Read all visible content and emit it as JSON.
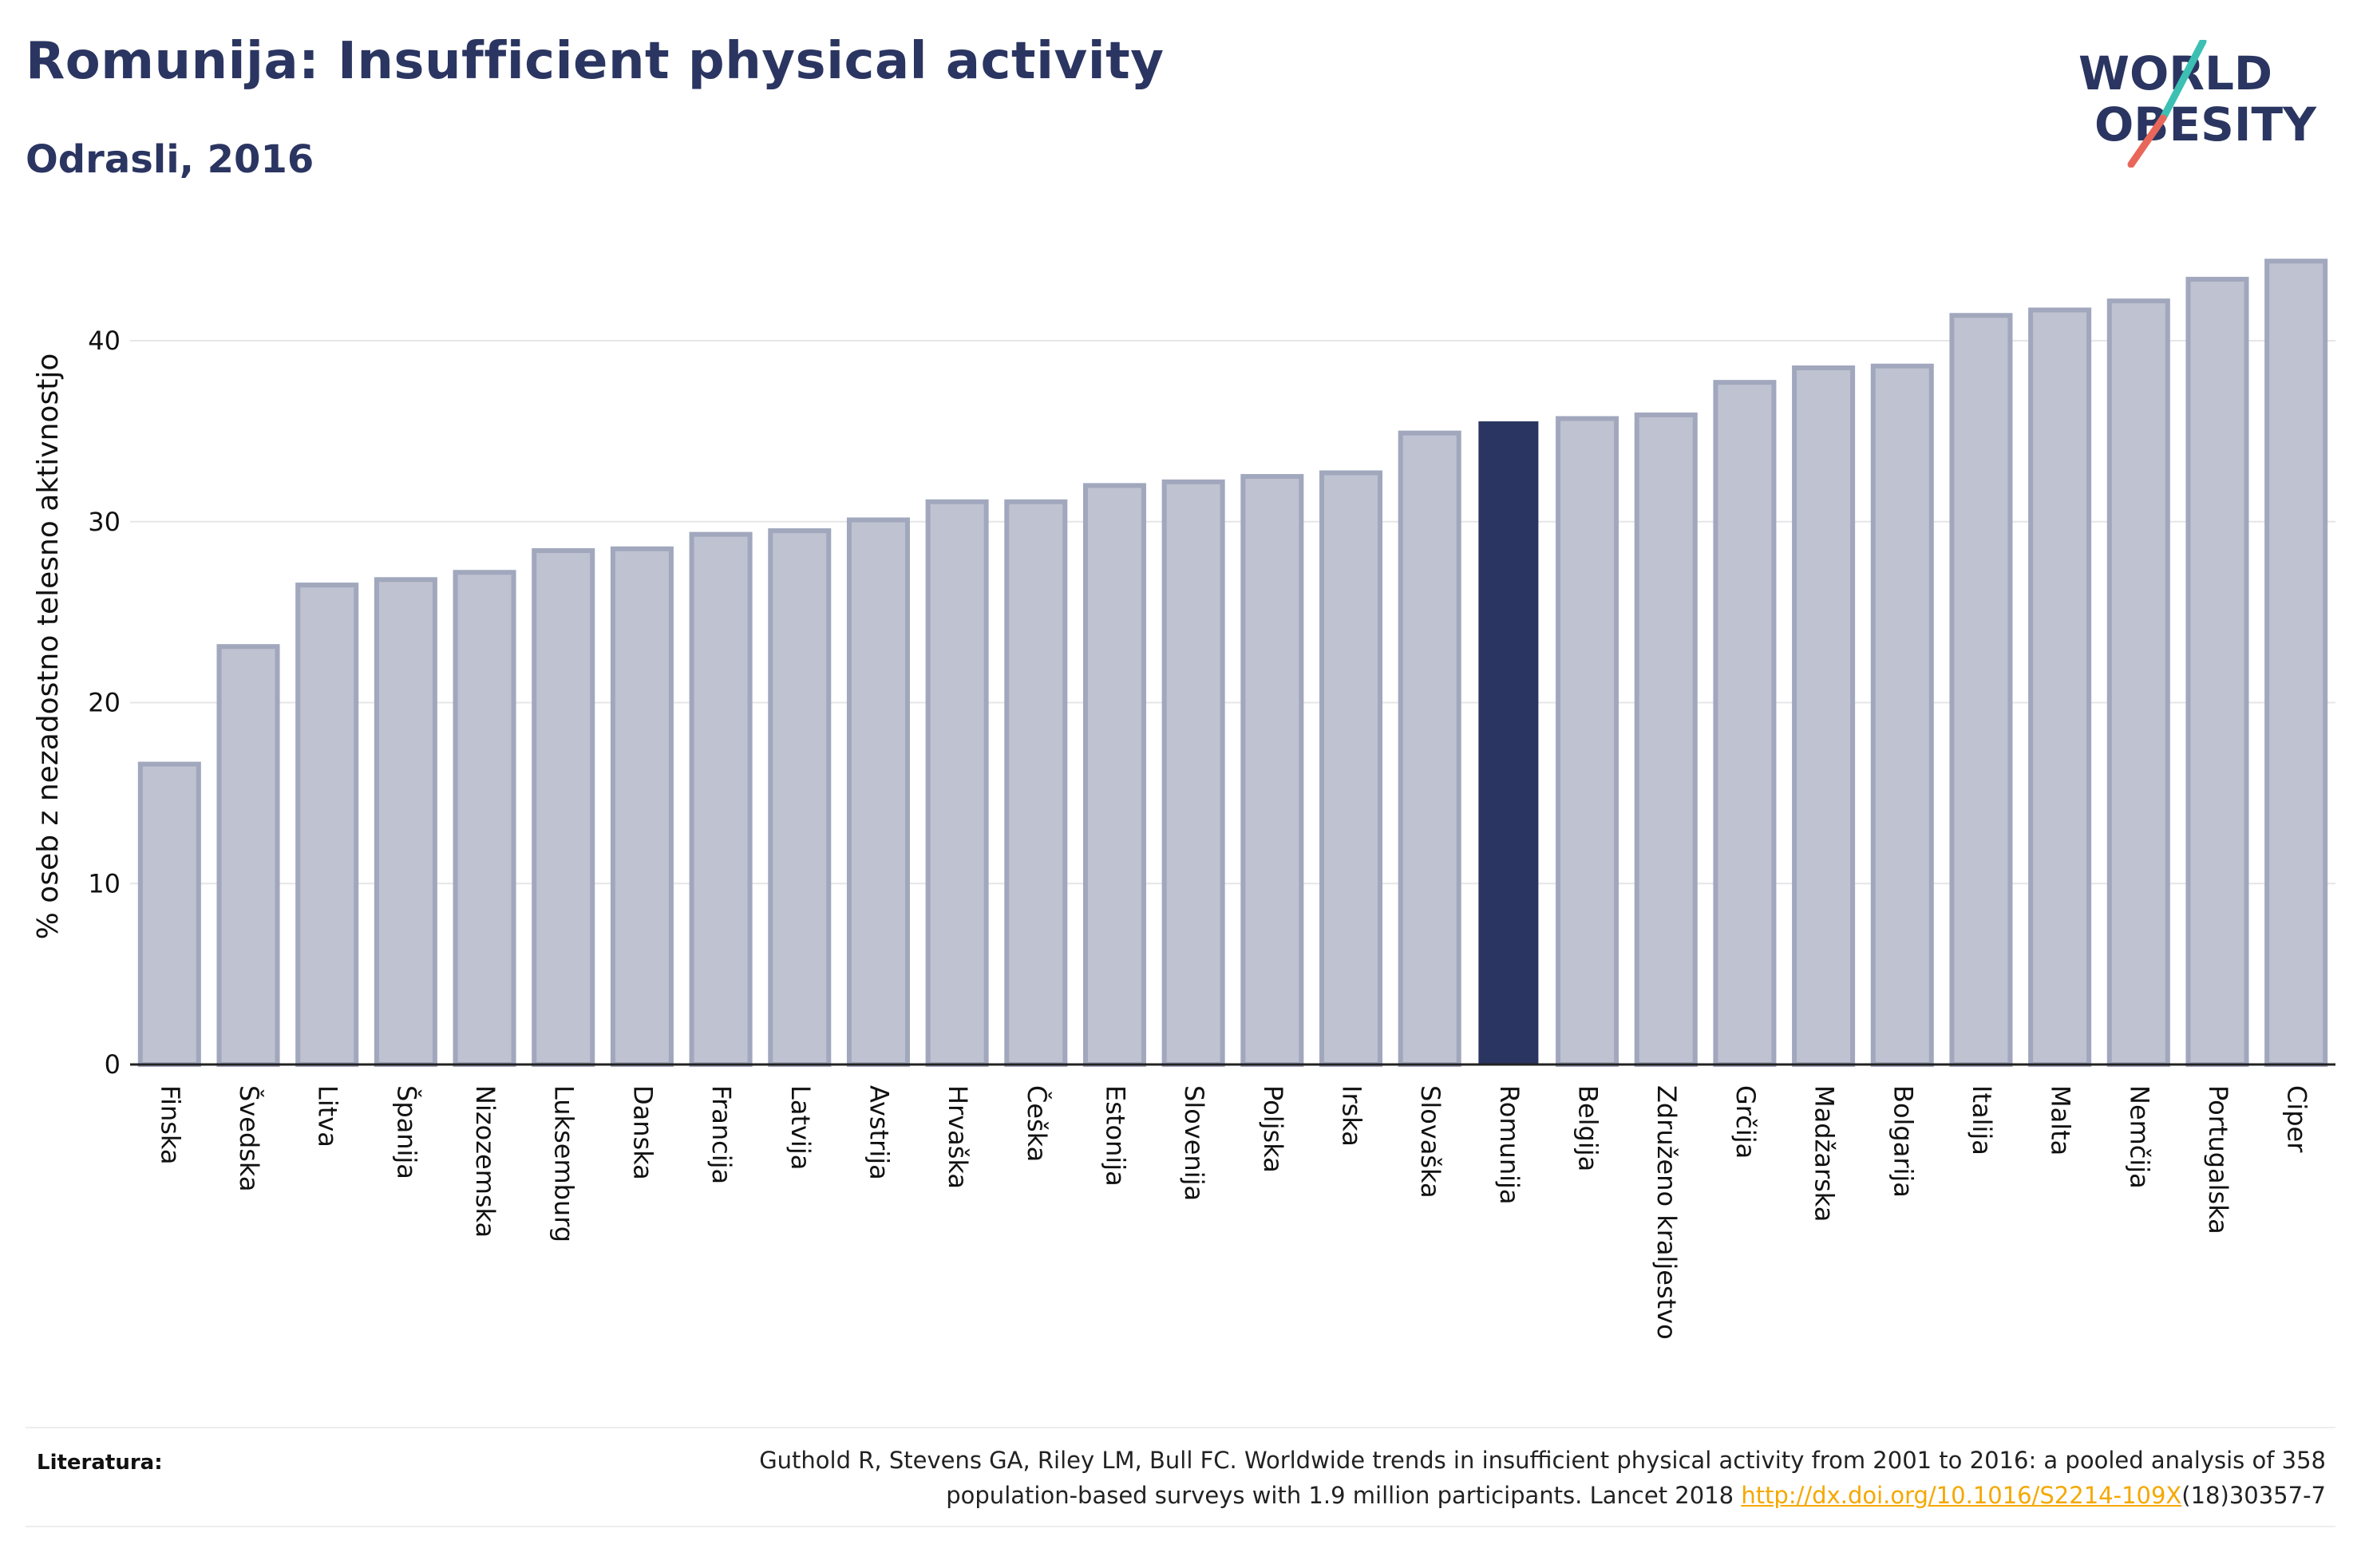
{
  "header": {
    "title": "Romunija: Insufficient physical activity",
    "subtitle": "Odrasli, 2016"
  },
  "logo": {
    "line1": "WORLD",
    "line2": "OBESITY",
    "text_color": "#2b3561",
    "slash_colors": [
      "#3cc0b4",
      "#e8675a"
    ]
  },
  "footer": {
    "literature_label": "Literatura:",
    "citation_line1": "Guthold R, Stevens GA, Riley LM, Bull FC. Worldwide trends in insufficient physical activity from 2001 to 2016: a pooled analysis of 358",
    "citation_line2_prefix": "population-based surveys with 1.9 million participants. Lancet 2018 ",
    "citation_link": "http://dx.doi.org/10.1016/S2214-109X",
    "citation_line2_suffix": "(18)30357-7"
  },
  "colors": {
    "bar_fill": "#bfc2d0",
    "bar_stroke": "#a1a7bd",
    "highlight_fill": "#2b3561",
    "grid": "#e6e6e6",
    "axis": "#222222"
  },
  "chart_data": {
    "type": "bar",
    "title": "Romunija: Insufficient physical activity",
    "subtitle": "Odrasli, 2016",
    "xlabel": "",
    "ylabel": "% oseb z nezadostno telesno aktivnostjo",
    "ylim": [
      0,
      45
    ],
    "yticks": [
      0,
      10,
      20,
      30,
      40
    ],
    "grid": true,
    "highlight": "Romunija",
    "categories": [
      "Finska",
      "Švedska",
      "Litva",
      "Španija",
      "Nizozemska",
      "Luksemburg",
      "Danska",
      "Francija",
      "Latvija",
      "Avstrija",
      "Hrvaška",
      "Češka",
      "Estonija",
      "Slovenija",
      "Poljska",
      "Irska",
      "Slovaška",
      "Romunija",
      "Belgija",
      "Združeno kraljestvo",
      "Grčija",
      "Madžarska",
      "Bolgarija",
      "Italija",
      "Malta",
      "Nemčija",
      "Portugalska",
      "Ciper"
    ],
    "values": [
      16.6,
      23.1,
      26.5,
      26.8,
      27.2,
      28.4,
      28.5,
      29.3,
      29.5,
      30.1,
      31.1,
      31.1,
      32.0,
      32.2,
      32.5,
      32.7,
      34.9,
      35.5,
      35.7,
      35.9,
      37.7,
      38.5,
      38.6,
      41.4,
      41.7,
      42.2,
      43.4,
      44.4
    ]
  }
}
